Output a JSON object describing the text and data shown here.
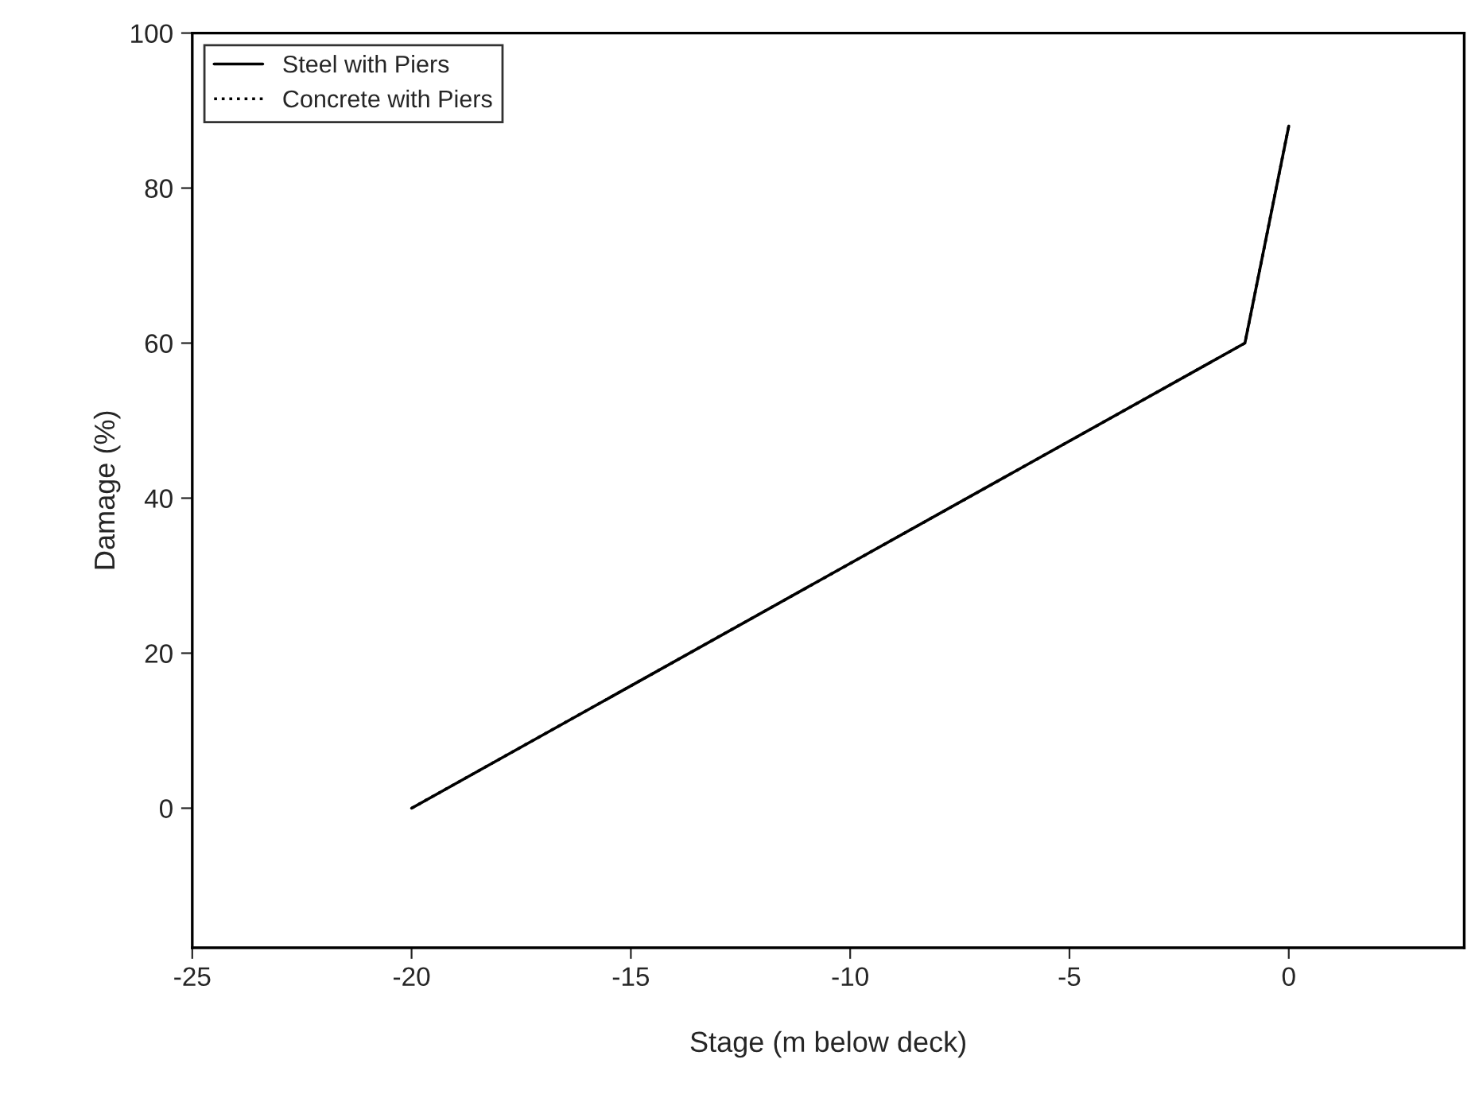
{
  "chart_data": {
    "type": "line",
    "xlabel": "Stage (m below deck)",
    "ylabel": "Damage (%)",
    "xlim": [
      -25,
      4
    ],
    "xticks": [
      -25,
      -20,
      -15,
      -10,
      -5,
      0
    ],
    "ylim": [
      -18,
      100
    ],
    "yticks": [
      0,
      20,
      40,
      60,
      80,
      100
    ],
    "grid": false,
    "legend": "top left",
    "series": [
      {
        "name": "Steel with Piers",
        "color": "#000000",
        "line_style": "solid",
        "x": [
          -20,
          -1,
          0
        ],
        "values": [
          0,
          60,
          88
        ]
      },
      {
        "name": "Concrete with Piers",
        "color": "#000000",
        "line_style": "dotted",
        "x": [
          -20,
          -1,
          0
        ],
        "values": [
          0,
          60,
          88
        ]
      }
    ]
  }
}
